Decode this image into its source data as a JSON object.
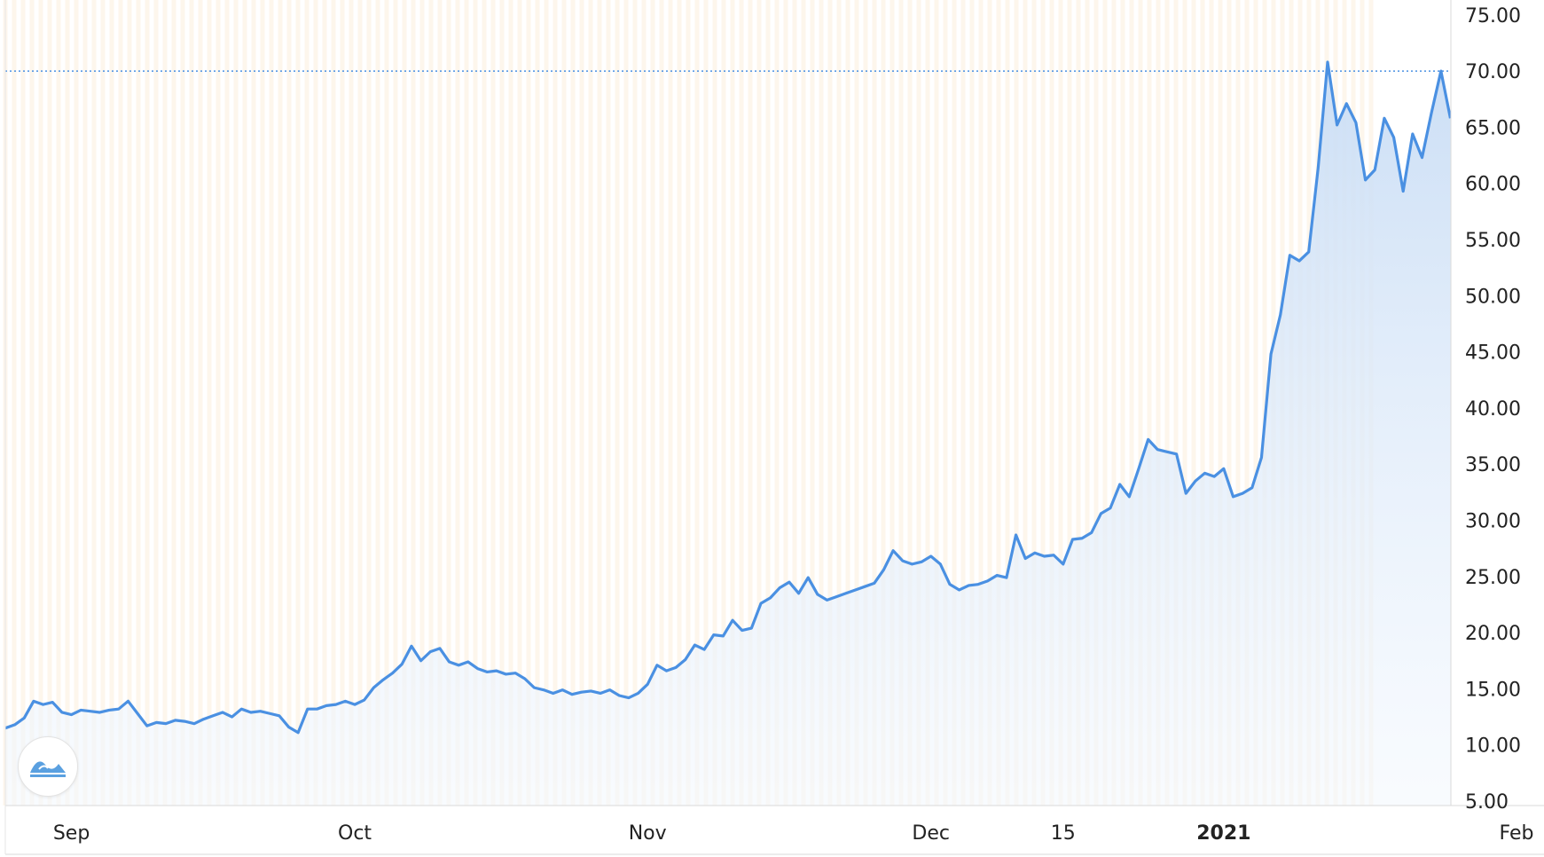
{
  "chart_data": {
    "type": "area",
    "title": "",
    "xlabel": "",
    "ylabel": "",
    "x_range": [
      "2020-08-25",
      "2021-02-01"
    ],
    "ylim": [
      5,
      75
    ],
    "y_ticks": [
      "5.00",
      "10.00",
      "15.00",
      "20.00",
      "25.00",
      "30.00",
      "35.00",
      "40.00",
      "45.00",
      "50.00",
      "55.00",
      "60.00",
      "65.00",
      "70.00",
      "75.00"
    ],
    "x_ticks": [
      {
        "date": "2020-09-01",
        "label": "Sep",
        "bold": false
      },
      {
        "date": "2020-10-01",
        "label": "Oct",
        "bold": false
      },
      {
        "date": "2020-11-01",
        "label": "Nov",
        "bold": false
      },
      {
        "date": "2020-12-01",
        "label": "Dec",
        "bold": false
      },
      {
        "date": "2020-12-15",
        "label": "15",
        "bold": false
      },
      {
        "date": "2021-01-01",
        "label": "2021",
        "bold": true
      },
      {
        "date": "2021-02-01",
        "label": "Feb",
        "bold": false
      }
    ],
    "grid": "vertical stripes",
    "reference_line": 70.0,
    "colors": {
      "line": "#4a90e2",
      "fill_top": "#cfe2f7",
      "fill_bottom": "#f5f9fe",
      "stripe": "#fdf6ec",
      "reference": "#4a90e2"
    },
    "series": [
      {
        "points": [
          [
            "2020-08-25",
            11.5
          ],
          [
            "2020-08-26",
            11.8
          ],
          [
            "2020-08-27",
            12.4
          ],
          [
            "2020-08-28",
            13.9
          ],
          [
            "2020-08-29",
            13.6
          ],
          [
            "2020-08-30",
            13.8
          ],
          [
            "2020-08-31",
            12.9
          ],
          [
            "2020-09-01",
            12.7
          ],
          [
            "2020-09-02",
            13.1
          ],
          [
            "2020-09-03",
            13.0
          ],
          [
            "2020-09-04",
            12.9
          ],
          [
            "2020-09-05",
            13.1
          ],
          [
            "2020-09-06",
            13.2
          ],
          [
            "2020-09-07",
            13.9
          ],
          [
            "2020-09-08",
            12.8
          ],
          [
            "2020-09-09",
            11.7
          ],
          [
            "2020-09-10",
            12.0
          ],
          [
            "2020-09-11",
            11.9
          ],
          [
            "2020-09-12",
            12.2
          ],
          [
            "2020-09-13",
            12.1
          ],
          [
            "2020-09-14",
            11.9
          ],
          [
            "2020-09-15",
            12.3
          ],
          [
            "2020-09-16",
            12.6
          ],
          [
            "2020-09-17",
            12.9
          ],
          [
            "2020-09-18",
            12.5
          ],
          [
            "2020-09-19",
            13.2
          ],
          [
            "2020-09-20",
            12.9
          ],
          [
            "2020-09-21",
            13.0
          ],
          [
            "2020-09-22",
            12.8
          ],
          [
            "2020-09-23",
            12.6
          ],
          [
            "2020-09-24",
            11.6
          ],
          [
            "2020-09-25",
            11.1
          ],
          [
            "2020-09-26",
            13.2
          ],
          [
            "2020-09-27",
            13.2
          ],
          [
            "2020-09-28",
            13.5
          ],
          [
            "2020-09-29",
            13.6
          ],
          [
            "2020-09-30",
            13.9
          ],
          [
            "2020-10-01",
            13.6
          ],
          [
            "2020-10-02",
            14.0
          ],
          [
            "2020-10-03",
            15.1
          ],
          [
            "2020-10-04",
            15.8
          ],
          [
            "2020-10-05",
            16.4
          ],
          [
            "2020-10-06",
            17.2
          ],
          [
            "2020-10-07",
            18.8
          ],
          [
            "2020-10-08",
            17.5
          ],
          [
            "2020-10-09",
            18.3
          ],
          [
            "2020-10-10",
            18.6
          ],
          [
            "2020-10-11",
            17.4
          ],
          [
            "2020-10-12",
            17.1
          ],
          [
            "2020-10-13",
            17.4
          ],
          [
            "2020-10-14",
            16.8
          ],
          [
            "2020-10-15",
            16.5
          ],
          [
            "2020-10-16",
            16.6
          ],
          [
            "2020-10-17",
            16.3
          ],
          [
            "2020-10-18",
            16.4
          ],
          [
            "2020-10-19",
            15.9
          ],
          [
            "2020-10-20",
            15.1
          ],
          [
            "2020-10-21",
            14.9
          ],
          [
            "2020-10-22",
            14.6
          ],
          [
            "2020-10-23",
            14.9
          ],
          [
            "2020-10-24",
            14.5
          ],
          [
            "2020-10-25",
            14.7
          ],
          [
            "2020-10-26",
            14.8
          ],
          [
            "2020-10-27",
            14.6
          ],
          [
            "2020-10-28",
            14.9
          ],
          [
            "2020-10-29",
            14.4
          ],
          [
            "2020-10-30",
            14.2
          ],
          [
            "2020-10-31",
            14.6
          ],
          [
            "2020-11-01",
            15.4
          ],
          [
            "2020-11-02",
            17.1
          ],
          [
            "2020-11-03",
            16.6
          ],
          [
            "2020-11-04",
            16.9
          ],
          [
            "2020-11-05",
            17.6
          ],
          [
            "2020-11-06",
            18.9
          ],
          [
            "2020-11-07",
            18.5
          ],
          [
            "2020-11-08",
            19.8
          ],
          [
            "2020-11-09",
            19.7
          ],
          [
            "2020-11-10",
            21.1
          ],
          [
            "2020-11-11",
            20.2
          ],
          [
            "2020-11-12",
            20.4
          ],
          [
            "2020-11-13",
            22.6
          ],
          [
            "2020-11-14",
            23.1
          ],
          [
            "2020-11-15",
            24.0
          ],
          [
            "2020-11-16",
            24.5
          ],
          [
            "2020-11-17",
            23.5
          ],
          [
            "2020-11-18",
            24.9
          ],
          [
            "2020-11-19",
            23.4
          ],
          [
            "2020-11-20",
            22.9
          ],
          [
            "2020-11-21",
            23.2
          ],
          [
            "2020-11-22",
            23.5
          ],
          [
            "2020-11-23",
            23.8
          ],
          [
            "2020-11-24",
            24.1
          ],
          [
            "2020-11-25",
            24.4
          ],
          [
            "2020-11-26",
            25.6
          ],
          [
            "2020-11-27",
            27.3
          ],
          [
            "2020-11-28",
            26.4
          ],
          [
            "2020-11-29",
            26.1
          ],
          [
            "2020-11-30",
            26.3
          ],
          [
            "2020-12-01",
            26.8
          ],
          [
            "2020-12-02",
            26.1
          ],
          [
            "2020-12-03",
            24.3
          ],
          [
            "2020-12-04",
            23.8
          ],
          [
            "2020-12-05",
            24.2
          ],
          [
            "2020-12-06",
            24.3
          ],
          [
            "2020-12-07",
            24.6
          ],
          [
            "2020-12-08",
            25.1
          ],
          [
            "2020-12-09",
            24.9
          ],
          [
            "2020-12-10",
            28.7
          ],
          [
            "2020-12-11",
            26.6
          ],
          [
            "2020-12-12",
            27.1
          ],
          [
            "2020-12-13",
            26.8
          ],
          [
            "2020-12-14",
            26.9
          ],
          [
            "2020-12-15",
            26.1
          ],
          [
            "2020-12-16",
            28.3
          ],
          [
            "2020-12-17",
            28.4
          ],
          [
            "2020-12-18",
            28.9
          ],
          [
            "2020-12-19",
            30.6
          ],
          [
            "2020-12-20",
            31.1
          ],
          [
            "2020-12-21",
            33.2
          ],
          [
            "2020-12-22",
            32.1
          ],
          [
            "2020-12-23",
            34.6
          ],
          [
            "2020-12-24",
            37.2
          ],
          [
            "2020-12-25",
            36.3
          ],
          [
            "2020-12-26",
            36.1
          ],
          [
            "2020-12-27",
            35.9
          ],
          [
            "2020-12-28",
            32.4
          ],
          [
            "2020-12-29",
            33.5
          ],
          [
            "2020-12-30",
            34.2
          ],
          [
            "2020-12-31",
            33.9
          ],
          [
            "2021-01-01",
            34.6
          ],
          [
            "2021-01-02",
            32.1
          ],
          [
            "2021-01-03",
            32.4
          ],
          [
            "2021-01-04",
            32.9
          ],
          [
            "2021-01-05",
            35.6
          ],
          [
            "2021-01-06",
            44.8
          ],
          [
            "2021-01-07",
            48.3
          ],
          [
            "2021-01-08",
            53.6
          ],
          [
            "2021-01-09",
            53.1
          ],
          [
            "2021-01-10",
            53.9
          ],
          [
            "2021-01-11",
            61.4
          ],
          [
            "2021-01-12",
            70.8
          ],
          [
            "2021-01-13",
            65.2
          ],
          [
            "2021-01-14",
            67.1
          ],
          [
            "2021-01-15",
            65.4
          ],
          [
            "2021-01-16",
            60.3
          ],
          [
            "2021-01-17",
            61.2
          ],
          [
            "2021-01-18",
            65.8
          ],
          [
            "2021-01-19",
            64.1
          ],
          [
            "2021-01-20",
            59.3
          ],
          [
            "2021-01-21",
            64.4
          ],
          [
            "2021-01-22",
            62.3
          ],
          [
            "2021-01-23",
            66.3
          ],
          [
            "2021-01-24",
            70.0
          ],
          [
            "2021-01-25",
            65.8
          ]
        ]
      }
    ]
  }
}
